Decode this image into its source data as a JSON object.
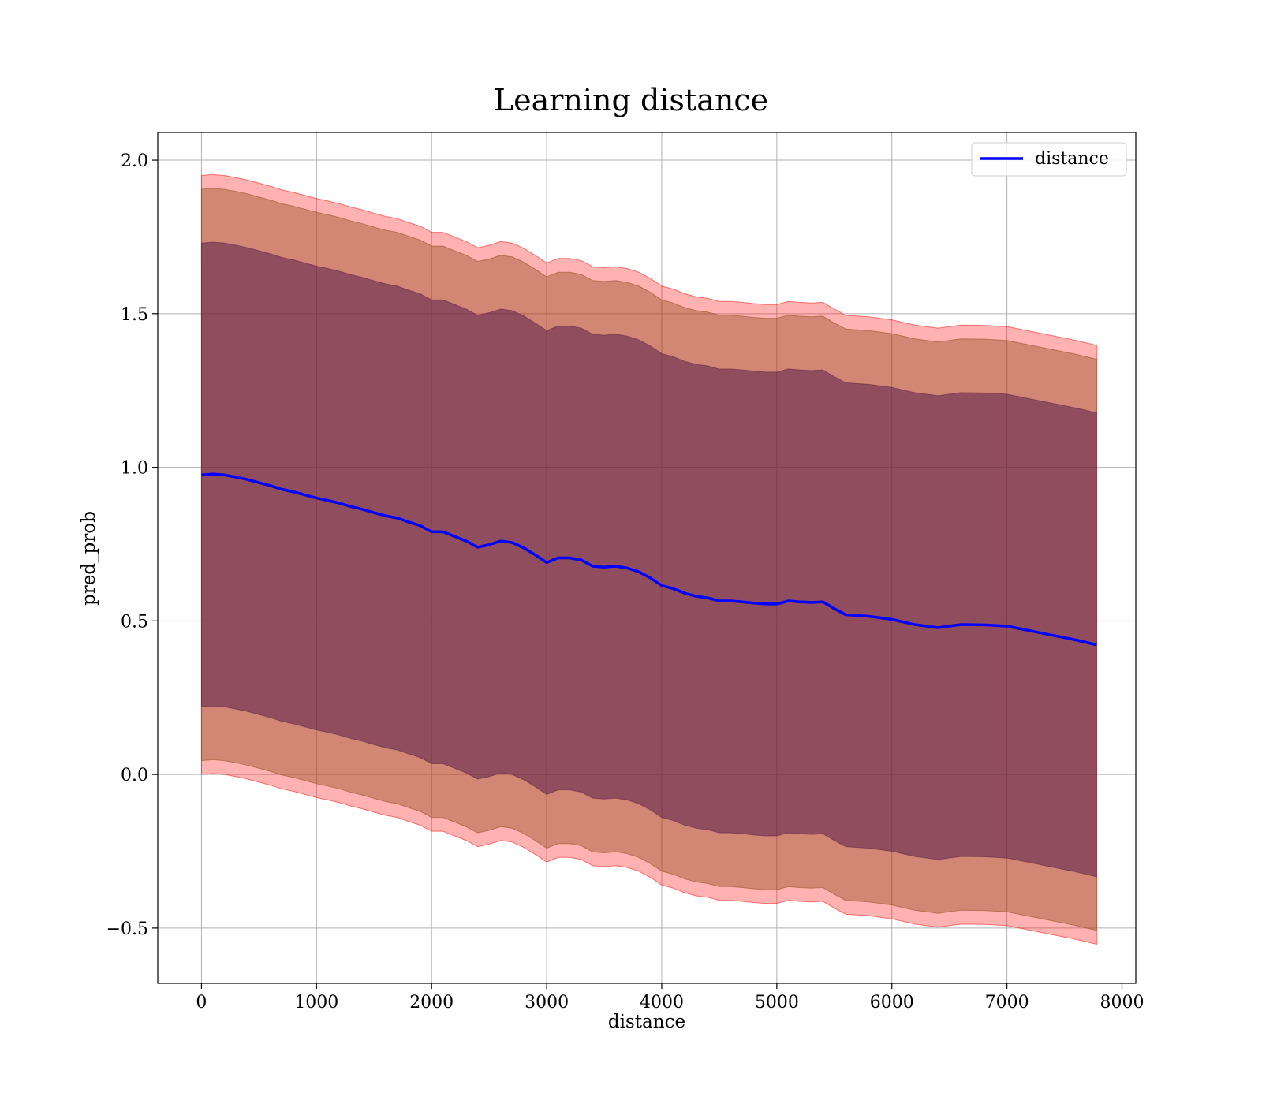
{
  "chart_data": {
    "type": "line",
    "title": "Learning distance",
    "xlabel": "distance",
    "ylabel": "pred_prob",
    "xlim": [
      -380,
      8120
    ],
    "ylim": [
      -0.68,
      2.09
    ],
    "xticks": [
      0,
      1000,
      2000,
      3000,
      4000,
      5000,
      6000,
      7000,
      8000
    ],
    "yticks": [
      -0.5,
      0.0,
      0.5,
      1.0,
      1.5,
      2.0
    ],
    "ytick_labels": [
      "−0.5",
      "0.0",
      "0.5",
      "1.0",
      "1.5",
      "2.0"
    ],
    "grid": true,
    "legend": {
      "placement": "top-right",
      "entries": [
        "distance"
      ]
    },
    "colors": {
      "line": "#0000ff",
      "band_outer": "#ff0000",
      "band_middle": "#8b4513",
      "band_inner": "#5a1d4a",
      "grid": "#b0b0b0"
    },
    "series": [
      {
        "name": "distance",
        "x": [
          0,
          100,
          200,
          300,
          400,
          500,
          600,
          700,
          800,
          900,
          1000,
          1100,
          1200,
          1300,
          1400,
          1500,
          1600,
          1700,
          1800,
          1900,
          2000,
          2100,
          2200,
          2300,
          2400,
          2500,
          2600,
          2700,
          2800,
          2900,
          3000,
          3100,
          3200,
          3300,
          3400,
          3500,
          3600,
          3700,
          3800,
          3900,
          4000,
          4100,
          4200,
          4300,
          4400,
          4500,
          4600,
          4700,
          4800,
          4900,
          5000,
          5100,
          5200,
          5300,
          5400,
          5500,
          5600,
          5800,
          6000,
          6200,
          6400,
          6600,
          6800,
          7000,
          7200,
          7400,
          7600,
          7780
        ],
        "y": [
          0.975,
          0.978,
          0.975,
          0.968,
          0.96,
          0.95,
          0.94,
          0.928,
          0.92,
          0.91,
          0.9,
          0.892,
          0.883,
          0.872,
          0.863,
          0.852,
          0.842,
          0.835,
          0.822,
          0.81,
          0.79,
          0.79,
          0.775,
          0.76,
          0.74,
          0.748,
          0.76,
          0.755,
          0.738,
          0.715,
          0.69,
          0.705,
          0.705,
          0.698,
          0.678,
          0.675,
          0.678,
          0.672,
          0.66,
          0.64,
          0.615,
          0.605,
          0.59,
          0.58,
          0.575,
          0.565,
          0.565,
          0.562,
          0.558,
          0.555,
          0.555,
          0.565,
          0.562,
          0.56,
          0.562,
          0.54,
          0.52,
          0.515,
          0.505,
          0.488,
          0.478,
          0.488,
          0.487,
          0.483,
          0.468,
          0.453,
          0.438,
          0.422
        ]
      }
    ],
    "bands": [
      {
        "name": "outer",
        "half_width": 0.975
      },
      {
        "name": "middle",
        "half_width": 0.93
      },
      {
        "name": "inner",
        "half_width": 0.755
      }
    ]
  }
}
